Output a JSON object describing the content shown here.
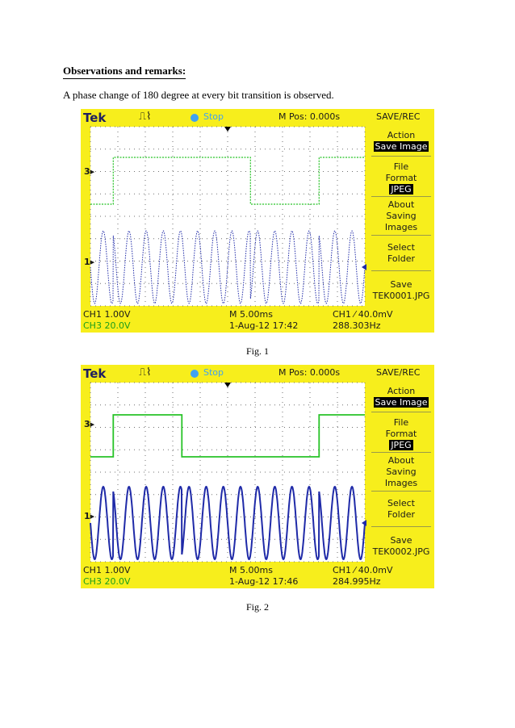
{
  "heading": "Observations and remarks:",
  "paragraph": "A phase change of 180 degree at every bit transition is observed.",
  "colors": {
    "screen_bg": "#f7ee1c",
    "digital_trace": "#27c327",
    "carrier_trace": "#1f2aa8",
    "brand": "#1f1f60",
    "stop": "#3fa2f2"
  },
  "scopes": [
    {
      "caption": "Fig. 1",
      "brand": "Tek",
      "status": "Stop",
      "mpos": "M Pos: 0.000s",
      "menu_title": "SAVE/REC",
      "menu": {
        "action": "Action",
        "action_value": "Save Image",
        "file": "File",
        "format": "Format",
        "format_value": "JPEG",
        "about1": "About",
        "about2": "Saving",
        "about3": "Images",
        "select": "Select",
        "folder": "Folder",
        "save": "Save",
        "save_file": "TEK0001.JPG"
      },
      "ch1_scale": "CH1  1.00V",
      "ch3_scale": "CH3  20.0V",
      "timebase": "M 5.00ms",
      "datetime": "1-Aug-12 17:42",
      "trigger": "CH1 ⁄ 40.0mV",
      "frequency": "288.303Hz",
      "ch3_marker": "3",
      "ch1_marker": "1",
      "chart_data": {
        "type": "line",
        "series": [
          {
            "values": [
              0,
              0.7,
              1,
              1,
              1,
              1,
              1,
              0,
              0,
              0,
              1,
              1
            ]
          }
        ],
        "carrier_frequency_hz": 288.303,
        "grid": true
      }
    },
    {
      "caption": "Fig. 2",
      "brand": "Tek",
      "status": "Stop",
      "mpos": "M Pos: 0.000s",
      "menu_title": "SAVE/REC",
      "menu": {
        "action": "Action",
        "action_value": "Save Image",
        "file": "File",
        "format": "Format",
        "format_value": "JPEG",
        "about1": "About",
        "about2": "Saving",
        "about3": "Images",
        "select": "Select",
        "folder": "Folder",
        "save": "Save",
        "save_file": "TEK0002.JPG"
      },
      "ch1_scale": "CH1  1.00V",
      "ch3_scale": "CH3  20.0V",
      "timebase": "M 5.00ms",
      "datetime": "1-Aug-12 17:46",
      "trigger": "CH1 ⁄ 40.0mV",
      "frequency": "284.995Hz",
      "ch3_marker": "3",
      "ch1_marker": "1",
      "chart_data": {
        "type": "line",
        "series": [
          {
            "values": [
              0,
              1,
              1,
              1,
              0,
              0,
              0,
              0,
              0,
              0,
              1,
              1
            ]
          }
        ],
        "carrier_frequency_hz": 284.995,
        "grid": true
      }
    }
  ]
}
